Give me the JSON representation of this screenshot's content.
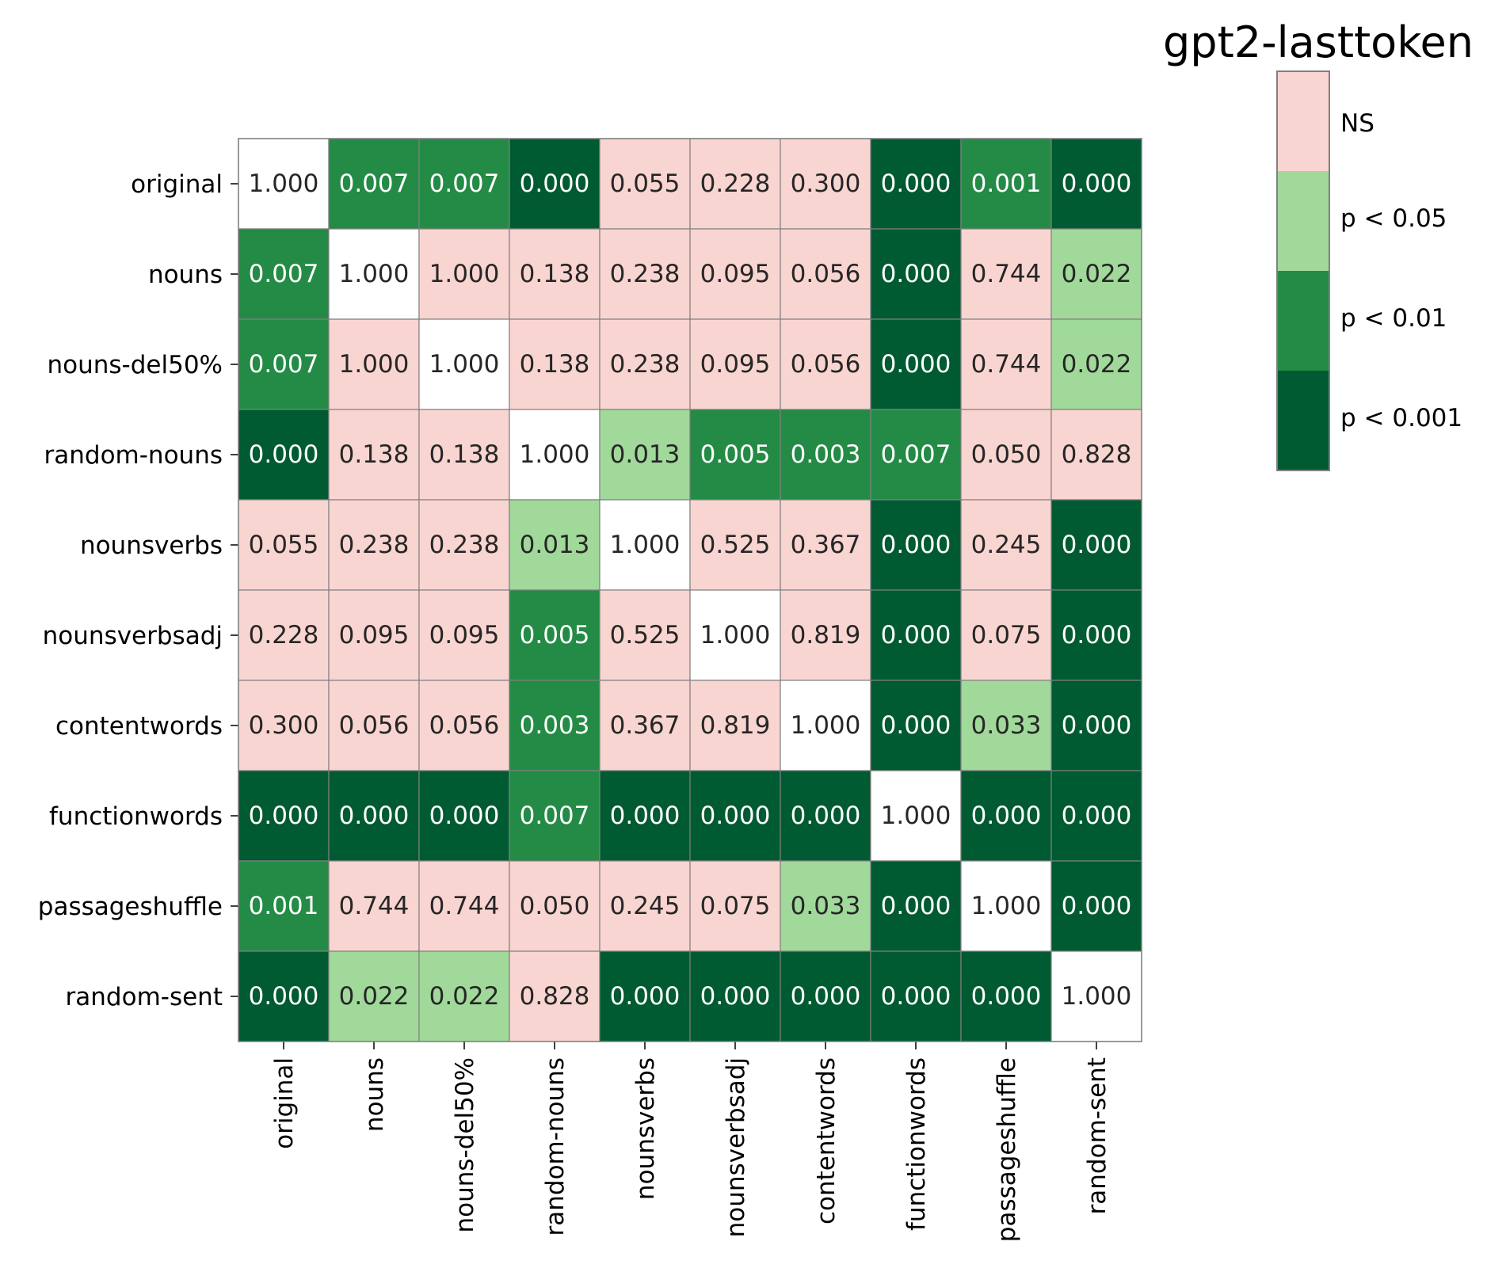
{
  "chart_data": {
    "type": "heatmap",
    "title": "gpt2-lasttoken",
    "xlabel": "",
    "ylabel": "",
    "rows": [
      "original",
      "nouns",
      "nouns-del50%",
      "random-nouns",
      "nounsverbs",
      "nounsverbsadj",
      "contentwords",
      "functionwords",
      "passageshuffle",
      "random-sent"
    ],
    "columns": [
      "original",
      "nouns",
      "nouns-del50%",
      "random-nouns",
      "nounsverbs",
      "nounsverbsadj",
      "contentwords",
      "functionwords",
      "passageshuffle",
      "random-sent"
    ],
    "values": [
      [
        "1.000",
        "0.007",
        "0.007",
        "0.000",
        "0.055",
        "0.228",
        "0.300",
        "0.000",
        "0.001",
        "0.000"
      ],
      [
        "0.007",
        "1.000",
        "1.000",
        "0.138",
        "0.238",
        "0.095",
        "0.056",
        "0.000",
        "0.744",
        "0.022"
      ],
      [
        "0.007",
        "1.000",
        "1.000",
        "0.138",
        "0.238",
        "0.095",
        "0.056",
        "0.000",
        "0.744",
        "0.022"
      ],
      [
        "0.000",
        "0.138",
        "0.138",
        "1.000",
        "0.013",
        "0.005",
        "0.003",
        "0.007",
        "0.050",
        "0.828"
      ],
      [
        "0.055",
        "0.238",
        "0.238",
        "0.013",
        "1.000",
        "0.525",
        "0.367",
        "0.000",
        "0.245",
        "0.000"
      ],
      [
        "0.228",
        "0.095",
        "0.095",
        "0.005",
        "0.525",
        "1.000",
        "0.819",
        "0.000",
        "0.075",
        "0.000"
      ],
      [
        "0.300",
        "0.056",
        "0.056",
        "0.003",
        "0.367",
        "0.819",
        "1.000",
        "0.000",
        "0.033",
        "0.000"
      ],
      [
        "0.000",
        "0.000",
        "0.000",
        "0.007",
        "0.000",
        "0.000",
        "0.000",
        "1.000",
        "0.000",
        "0.000"
      ],
      [
        "0.001",
        "0.744",
        "0.744",
        "0.050",
        "0.245",
        "0.075",
        "0.033",
        "0.000",
        "1.000",
        "0.000"
      ],
      [
        "0.000",
        "0.022",
        "0.022",
        "0.828",
        "0.000",
        "0.000",
        "0.000",
        "0.000",
        "0.000",
        "1.000"
      ]
    ],
    "legend": {
      "placement": "right",
      "entries": [
        {
          "label": "NS",
          "color": "#f9d5d1"
        },
        {
          "label": "p < 0.05",
          "color": "#a1d99b"
        },
        {
          "label": "p < 0.01",
          "color": "#238b45"
        },
        {
          "label": "p < 0.001",
          "color": "#005a32"
        }
      ]
    },
    "colors": {
      "diagonal": "#ffffff",
      "ns": "#f9d5d1",
      "p05": "#a1d99b",
      "p01": "#238b45",
      "p001": "#005a32",
      "grid": "#808080",
      "dark_text": "#262626",
      "light_text": "#ffffff"
    }
  }
}
